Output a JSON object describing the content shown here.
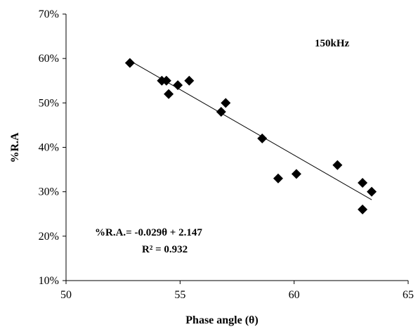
{
  "chart_data": {
    "type": "scatter",
    "xlabel": "Phase angle (θ)",
    "ylabel": "%R.A",
    "xlim": [
      50,
      65
    ],
    "ylim": [
      10,
      70
    ],
    "x_ticks": [
      "50",
      "55",
      "60",
      "65"
    ],
    "y_ticks": [
      "10%",
      "20%",
      "30%",
      "40%",
      "50%",
      "60%",
      "70%"
    ],
    "grid": false,
    "legend": "none",
    "annotation_label": "150kHz",
    "equation_text": "%R.A.= -0.029θ + 2.147",
    "r_squared_text": "R² = 0.932",
    "series": [
      {
        "marker": "diamond",
        "color": "#000000",
        "points": [
          {
            "x": 52.8,
            "y": 59
          },
          {
            "x": 54.2,
            "y": 55
          },
          {
            "x": 54.4,
            "y": 55
          },
          {
            "x": 54.5,
            "y": 52
          },
          {
            "x": 54.9,
            "y": 54
          },
          {
            "x": 55.4,
            "y": 55
          },
          {
            "x": 56.8,
            "y": 48
          },
          {
            "x": 57.0,
            "y": 50
          },
          {
            "x": 58.6,
            "y": 42
          },
          {
            "x": 59.3,
            "y": 33
          },
          {
            "x": 60.1,
            "y": 34
          },
          {
            "x": 61.9,
            "y": 36
          },
          {
            "x": 63.0,
            "y": 32
          },
          {
            "x": 63.0,
            "y": 26
          },
          {
            "x": 63.4,
            "y": 30
          }
        ]
      }
    ],
    "trendline": {
      "type": "linear",
      "from": {
        "x": 52.8,
        "y": 59.5
      },
      "to": {
        "x": 63.4,
        "y": 28.2
      },
      "color": "#000000"
    }
  }
}
